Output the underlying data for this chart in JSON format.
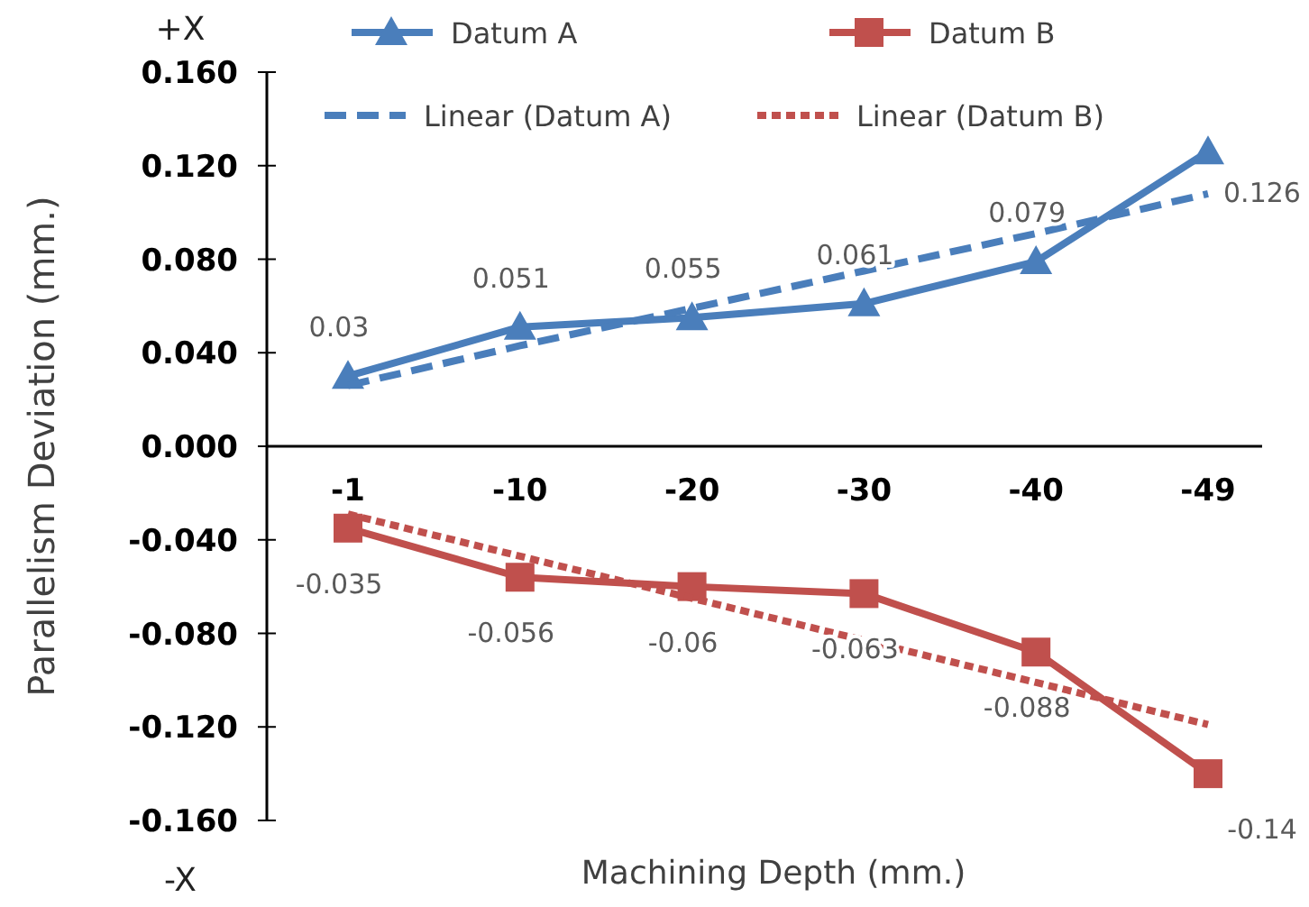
{
  "chart_data": {
    "type": "line",
    "xlabel": "Machining Depth (mm.)",
    "ylabel": "Parallelism Deviation (mm.)",
    "categories": [
      "-1",
      "-10",
      "-20",
      "-30",
      "-40",
      "-49"
    ],
    "series": [
      {
        "name": "Datum A",
        "color": "#4a7ebb",
        "marker": "triangle",
        "line_style": "solid",
        "values": [
          0.03,
          0.051,
          0.055,
          0.061,
          0.079,
          0.126
        ],
        "value_labels": [
          "0.03",
          "0.051",
          "0.055",
          "0.061",
          "0.079",
          "0.126"
        ]
      },
      {
        "name": "Datum B",
        "color": "#c0504d",
        "marker": "square",
        "line_style": "solid",
        "values": [
          -0.035,
          -0.056,
          -0.06,
          -0.063,
          -0.088,
          -0.14
        ],
        "value_labels": [
          "-0.035",
          "-0.056",
          "-0.06",
          "-0.063",
          "-0.088",
          "-0.14"
        ]
      },
      {
        "name": "Linear (Datum A)",
        "color": "#4a7ebb",
        "marker": "none",
        "line_style": "dashed",
        "values": [
          0.026,
          0.043,
          0.059,
          0.075,
          0.091,
          0.108
        ]
      },
      {
        "name": "Linear (Datum B)",
        "color": "#c0504d",
        "marker": "none",
        "line_style": "dotted",
        "values": [
          -0.029,
          -0.047,
          -0.065,
          -0.083,
          -0.101,
          -0.119
        ]
      }
    ],
    "ylim": [
      -0.16,
      0.16
    ],
    "yticks": [
      {
        "value": 0.16,
        "label": "0.160"
      },
      {
        "value": 0.12,
        "label": "0.120"
      },
      {
        "value": 0.08,
        "label": "0.080"
      },
      {
        "value": 0.04,
        "label": "0.040"
      },
      {
        "value": 0,
        "label": "0.000"
      },
      {
        "value": -0.04,
        "label": "-0.040"
      },
      {
        "value": -0.08,
        "label": "-0.080"
      },
      {
        "value": -0.12,
        "label": "-0.120"
      },
      {
        "value": -0.16,
        "label": "-0.160"
      }
    ],
    "annotations": [
      "+X",
      "-X"
    ],
    "legend": "top",
    "grid": false
  }
}
